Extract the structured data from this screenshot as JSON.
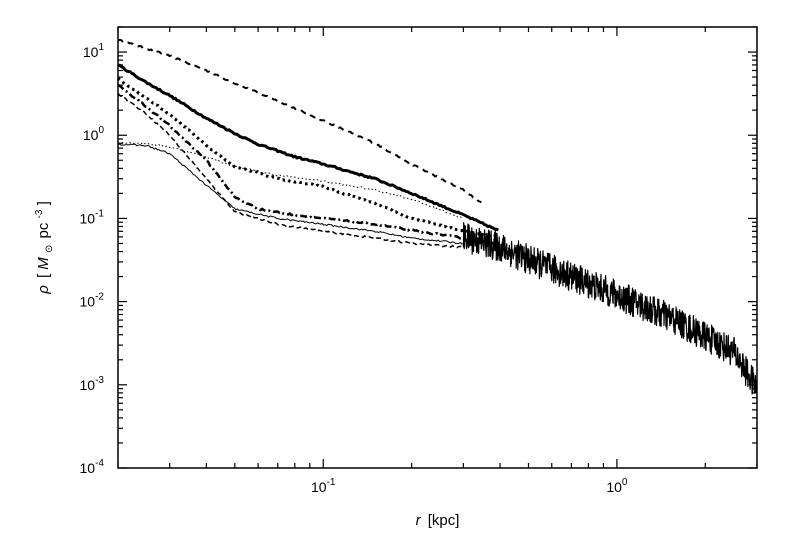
{
  "chart_data": {
    "type": "line",
    "title": "",
    "xscale": "log",
    "yscale": "log",
    "xlim": [
      0.02,
      3.0
    ],
    "ylim": [
      0.0001,
      20
    ],
    "grid": false,
    "legend": "none",
    "xlabel": {
      "var": "r",
      "unit": "[kpc]"
    },
    "ylabel": {
      "var": "ρ",
      "bracket_open": "[",
      "msun_base": "M",
      "msun_sub": "⊙",
      "unit_mid": "pc",
      "unit_sup": "-3",
      "bracket_close": "]"
    },
    "x_major_ticks": [
      {
        "value": 0.1,
        "base": "10",
        "exp": "-1"
      },
      {
        "value": 1.0,
        "base": "10",
        "exp": "0"
      }
    ],
    "y_major_ticks": [
      {
        "value": 10,
        "base": "10",
        "exp": "1"
      },
      {
        "value": 1,
        "base": "10",
        "exp": "0"
      },
      {
        "value": 0.1,
        "base": "10",
        "exp": "-1"
      },
      {
        "value": 0.01,
        "base": "10",
        "exp": "-2"
      },
      {
        "value": 0.001,
        "base": "10",
        "exp": "-3"
      },
      {
        "value": 0.0001,
        "base": "10",
        "exp": "-4"
      }
    ],
    "series": [
      {
        "style": "dashed",
        "stroke_width": 2,
        "noise": 0.01,
        "points": [
          [
            0.02,
            14
          ],
          [
            0.025,
            11
          ],
          [
            0.03,
            9
          ],
          [
            0.04,
            6
          ],
          [
            0.05,
            4.2
          ],
          [
            0.07,
            2.6
          ],
          [
            0.1,
            1.5
          ],
          [
            0.15,
            0.8
          ],
          [
            0.2,
            0.45
          ],
          [
            0.3,
            0.22
          ],
          [
            0.35,
            0.15
          ]
        ]
      },
      {
        "style": "solid",
        "stroke_width": 3,
        "noise": 0.01,
        "points": [
          [
            0.02,
            7
          ],
          [
            0.025,
            4.3
          ],
          [
            0.03,
            3.0
          ],
          [
            0.04,
            1.6
          ],
          [
            0.05,
            1.05
          ],
          [
            0.06,
            0.78
          ],
          [
            0.08,
            0.55
          ],
          [
            0.1,
            0.45
          ],
          [
            0.15,
            0.3
          ],
          [
            0.2,
            0.2
          ],
          [
            0.3,
            0.11
          ],
          [
            0.4,
            0.07
          ]
        ]
      },
      {
        "style": "dotted",
        "stroke_width": 3,
        "noise": 0.01,
        "points": [
          [
            0.02,
            4.8
          ],
          [
            0.025,
            2.8
          ],
          [
            0.03,
            1.8
          ],
          [
            0.04,
            0.75
          ],
          [
            0.05,
            0.42
          ],
          [
            0.07,
            0.3
          ],
          [
            0.1,
            0.24
          ],
          [
            0.15,
            0.15
          ],
          [
            0.2,
            0.1
          ],
          [
            0.3,
            0.07
          ],
          [
            0.4,
            0.06
          ]
        ]
      },
      {
        "style": "thin-dotted",
        "stroke_width": 1,
        "noise": 0.01,
        "points": [
          [
            0.02,
            0.82
          ],
          [
            0.025,
            0.8
          ],
          [
            0.03,
            0.72
          ],
          [
            0.04,
            0.55
          ],
          [
            0.05,
            0.42
          ],
          [
            0.07,
            0.33
          ],
          [
            0.1,
            0.28
          ],
          [
            0.15,
            0.22
          ],
          [
            0.2,
            0.17
          ],
          [
            0.3,
            0.1
          ]
        ]
      },
      {
        "style": "dash-dot",
        "stroke_width": 2.5,
        "noise": 0.01,
        "points": [
          [
            0.02,
            4.0
          ],
          [
            0.025,
            2.2
          ],
          [
            0.03,
            1.3
          ],
          [
            0.04,
            0.5
          ],
          [
            0.05,
            0.18
          ],
          [
            0.06,
            0.13
          ],
          [
            0.08,
            0.11
          ],
          [
            0.1,
            0.1
          ],
          [
            0.15,
            0.085
          ],
          [
            0.2,
            0.072
          ],
          [
            0.3,
            0.058
          ],
          [
            0.4,
            0.05
          ]
        ]
      },
      {
        "style": "thin-solid",
        "stroke_width": 1,
        "noise": 0.01,
        "points": [
          [
            0.02,
            0.78
          ],
          [
            0.025,
            0.75
          ],
          [
            0.03,
            0.6
          ],
          [
            0.04,
            0.25
          ],
          [
            0.05,
            0.13
          ],
          [
            0.07,
            0.1
          ],
          [
            0.1,
            0.085
          ],
          [
            0.15,
            0.07
          ],
          [
            0.2,
            0.058
          ],
          [
            0.3,
            0.05
          ]
        ]
      },
      {
        "style": "dashed-thin",
        "stroke_width": 1.5,
        "noise": 0.01,
        "points": [
          [
            0.02,
            3.2
          ],
          [
            0.025,
            1.8
          ],
          [
            0.03,
            1.0
          ],
          [
            0.04,
            0.3
          ],
          [
            0.05,
            0.12
          ],
          [
            0.07,
            0.085
          ],
          [
            0.1,
            0.07
          ],
          [
            0.15,
            0.058
          ],
          [
            0.2,
            0.05
          ],
          [
            0.3,
            0.045
          ]
        ]
      },
      {
        "style": "noisy-tail",
        "stroke_width": 1.2,
        "noise": 0.18,
        "points": [
          [
            0.3,
            0.06
          ],
          [
            0.4,
            0.045
          ],
          [
            0.5,
            0.032
          ],
          [
            0.7,
            0.02
          ],
          [
            1.0,
            0.012
          ],
          [
            1.5,
            0.0065
          ],
          [
            2.0,
            0.0038
          ],
          [
            2.5,
            0.0025
          ],
          [
            3.0,
            0.0009
          ]
        ]
      }
    ]
  }
}
